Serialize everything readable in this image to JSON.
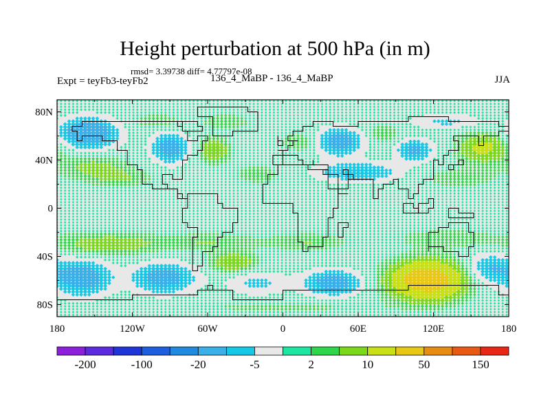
{
  "title": "Height perturbation at 500 hPa (in m)",
  "stats": "rmsd= 3.39738 diff= 4.77797e-08",
  "left_label": "Expt = teyFb3-teyFb2",
  "center_label": "136_4_MaBP - 136_4_MaBP",
  "right_label": "JJA",
  "lat_ticks": [
    {
      "value": 80,
      "label": "80N"
    },
    {
      "value": 40,
      "label": "40N"
    },
    {
      "value": 0,
      "label": "0"
    },
    {
      "value": -40,
      "label": "40S"
    },
    {
      "value": -80,
      "label": "80S"
    }
  ],
  "lon_ticks": [
    {
      "value": -180,
      "label": "180"
    },
    {
      "value": -120,
      "label": "120W"
    },
    {
      "value": -60,
      "label": "60W"
    },
    {
      "value": 0,
      "label": "0"
    },
    {
      "value": 60,
      "label": "60E"
    },
    {
      "value": 120,
      "label": "120E"
    },
    {
      "value": 180,
      "label": "180"
    }
  ],
  "colorbar": {
    "colors": [
      "#8c1fd9",
      "#5b2be0",
      "#2035d8",
      "#1e5fe0",
      "#1e8be0",
      "#3ab0e8",
      "#14c8e6",
      "#e8e8e8",
      "#1ee6a0",
      "#30d64a",
      "#7ad818",
      "#c8e014",
      "#e8c814",
      "#e88c14",
      "#e85a14",
      "#e82814"
    ],
    "labels": [
      {
        "after_box": 1,
        "text": "-200"
      },
      {
        "after_box": 3,
        "text": "-100"
      },
      {
        "after_box": 5,
        "text": "-20"
      },
      {
        "after_box": 7,
        "text": "-5"
      },
      {
        "after_box": 9,
        "text": "2"
      },
      {
        "after_box": 11,
        "text": "10"
      },
      {
        "after_box": 13,
        "text": "50"
      },
      {
        "after_box": 15,
        "text": "150"
      }
    ]
  },
  "field": {
    "type": "contour-map",
    "projection": "lat-lon",
    "lon_range": [
      -180,
      180
    ],
    "lat_range": [
      -90,
      90
    ],
    "anomalies": [
      {
        "lon": -155,
        "lat": 62,
        "value": -18,
        "rlon": 22,
        "rlat": 12
      },
      {
        "lon": -152,
        "lat": 35,
        "value": 6,
        "rlon": 26,
        "rlat": 10
      },
      {
        "lon": -100,
        "lat": 72,
        "value": 4,
        "rlon": 22,
        "rlat": 7
      },
      {
        "lon": -90,
        "lat": 50,
        "value": -14,
        "rlon": 14,
        "rlat": 12
      },
      {
        "lon": -55,
        "lat": 48,
        "value": 10,
        "rlon": 12,
        "rlat": 10
      },
      {
        "lon": -45,
        "lat": 72,
        "value": 4,
        "rlon": 20,
        "rlat": 7
      },
      {
        "lon": -130,
        "lat": 25,
        "value": 5,
        "rlon": 25,
        "rlat": 8
      },
      {
        "lon": -20,
        "lat": 28,
        "value": 5,
        "rlon": 16,
        "rlat": 7
      },
      {
        "lon": 15,
        "lat": 55,
        "value": 5,
        "rlon": 16,
        "rlat": 8
      },
      {
        "lon": 45,
        "lat": 55,
        "value": -14,
        "rlon": 18,
        "rlat": 11
      },
      {
        "lon": 80,
        "lat": 62,
        "value": 5,
        "rlon": 12,
        "rlat": 8
      },
      {
        "lon": 105,
        "lat": 48,
        "value": -12,
        "rlon": 14,
        "rlat": 9
      },
      {
        "lon": 60,
        "lat": 30,
        "value": -10,
        "rlon": 32,
        "rlat": 8
      },
      {
        "lon": 160,
        "lat": 50,
        "value": 12,
        "rlon": 20,
        "rlat": 12
      },
      {
        "lon": 130,
        "lat": 72,
        "value": -6,
        "rlon": 28,
        "rlat": 6
      },
      {
        "lon": 140,
        "lat": 25,
        "value": 4,
        "rlon": 30,
        "rlat": 8
      },
      {
        "lon": -140,
        "lat": -30,
        "value": 8,
        "rlon": 40,
        "rlat": 9
      },
      {
        "lon": -60,
        "lat": -28,
        "value": 5,
        "rlon": 40,
        "rlat": 7
      },
      {
        "lon": 20,
        "lat": -28,
        "value": 5,
        "rlon": 30,
        "rlat": 7
      },
      {
        "lon": 130,
        "lat": -25,
        "value": 4,
        "rlon": 40,
        "rlat": 8
      },
      {
        "lon": -160,
        "lat": -58,
        "value": -15,
        "rlon": 22,
        "rlat": 14
      },
      {
        "lon": -95,
        "lat": -58,
        "value": -14,
        "rlon": 24,
        "rlat": 12
      },
      {
        "lon": -40,
        "lat": -45,
        "value": 10,
        "rlon": 18,
        "rlat": 8
      },
      {
        "lon": -20,
        "lat": -62,
        "value": -6,
        "rlon": 24,
        "rlat": 10
      },
      {
        "lon": 40,
        "lat": -62,
        "value": -14,
        "rlon": 22,
        "rlat": 10
      },
      {
        "lon": 115,
        "lat": -60,
        "value": 30,
        "rlon": 28,
        "rlat": 15
      },
      {
        "lon": 165,
        "lat": -50,
        "value": -10,
        "rlon": 18,
        "rlat": 12
      },
      {
        "lon": 0,
        "lat": -82,
        "value": 3,
        "rlon": 80,
        "rlat": 5
      }
    ]
  }
}
